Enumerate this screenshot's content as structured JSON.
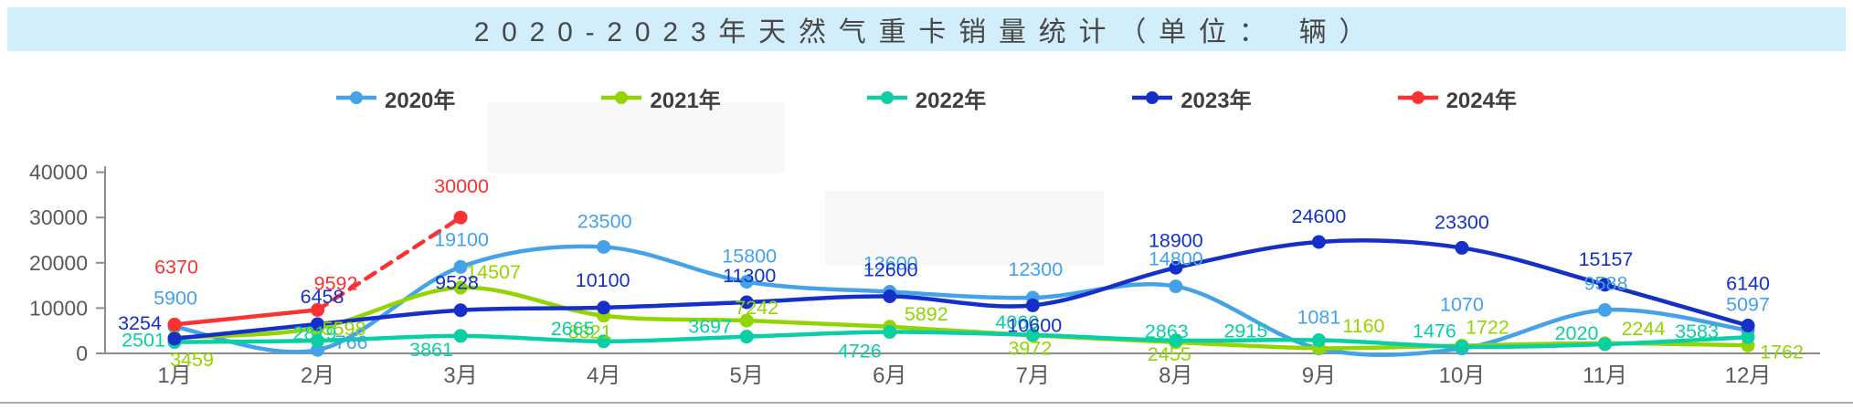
{
  "title": {
    "text": "2020-2023年天然气重卡销量统计（单位： 辆）"
  },
  "colors": {
    "banner_bg": "#d2eefb",
    "title_text": "#474747",
    "axis_line": "#8c8c8c",
    "axis_text": "#5a5a5a",
    "legend_text": "#3f3f3f",
    "bottom_divider": "#ababab"
  },
  "chart_data": {
    "type": "line",
    "title": "2020-2023年天然气重卡销量统计（单位： 辆）",
    "xlabel": "",
    "ylabel": "",
    "ylim": [
      0,
      40000
    ],
    "y_ticks": [
      0,
      10000,
      20000,
      30000,
      40000
    ],
    "grid": false,
    "legend_position": "top",
    "categories": [
      "1月",
      "2月",
      "3月",
      "4月",
      "5月",
      "6月",
      "7月",
      "8月",
      "9月",
      "10月",
      "11月",
      "12月"
    ],
    "series": [
      {
        "name": "2020年",
        "color": "#44a3e8",
        "values": [
          5900,
          766,
          19100,
          23500,
          15800,
          13600,
          12300,
          14800,
          1081,
          1070,
          9588,
          5097
        ]
      },
      {
        "name": "2021年",
        "color": "#93d500",
        "values": [
          3459,
          5598,
          14507,
          8321,
          7242,
          5892,
          3972,
          2455,
          1160,
          1722,
          2244,
          1762
        ]
      },
      {
        "name": "2022年",
        "color": "#0bcfa4",
        "values": [
          2501,
          2819,
          3861,
          2665,
          3697,
          4726,
          4060,
          2863,
          2915,
          1476,
          2020,
          3583
        ]
      },
      {
        "name": "2023年",
        "color": "#1530c8",
        "values": [
          3254,
          6458,
          9528,
          10100,
          11300,
          12600,
          10600,
          18900,
          24600,
          23300,
          15157,
          6140
        ]
      },
      {
        "name": "2024年",
        "color": "#fc3131",
        "values": [
          6370,
          9592,
          30000
        ],
        "straight": true,
        "dashed_from_index": 1
      }
    ]
  }
}
